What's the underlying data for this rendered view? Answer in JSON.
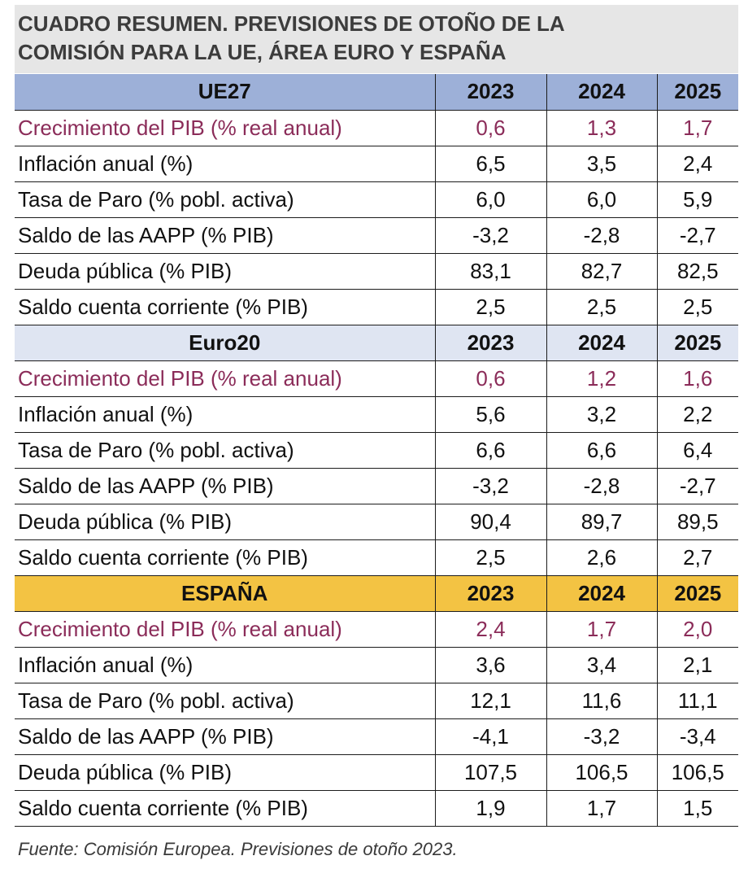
{
  "title": {
    "line1": "CUADRO RESUMEN. PREVISIONES DE OTOÑO DE LA",
    "line2": "COMISIÓN PARA LA UE, ÁREA EURO Y ESPAÑA"
  },
  "colors": {
    "ue_header": "#9db0d8",
    "euro_header": "#dfe5f2",
    "es_header": "#f3c343",
    "accent_text": "#8b2c59",
    "title_background": "#e6e6e6"
  },
  "sections": [
    {
      "name": "UE27",
      "years": [
        "2023",
        "2024",
        "2025"
      ],
      "rows": [
        {
          "label": "Crecimiento del PIB (% real anual)",
          "values": [
            "0,6",
            "1,3",
            "1,7"
          ]
        },
        {
          "label": "Inflación anual (%)",
          "values": [
            "6,5",
            "3,5",
            "2,4"
          ]
        },
        {
          "label": "Tasa de Paro (% pobl. activa)",
          "values": [
            "6,0",
            "6,0",
            "5,9"
          ]
        },
        {
          "label": "Saldo de las AAPP (% PIB)",
          "values": [
            "-3,2",
            "-2,8",
            "-2,7"
          ]
        },
        {
          "label": "Deuda pública (% PIB)",
          "values": [
            "83,1",
            "82,7",
            "82,5"
          ]
        },
        {
          "label": "Saldo cuenta corriente (% PIB)",
          "values": [
            "2,5",
            "2,5",
            "2,5"
          ]
        }
      ]
    },
    {
      "name": "Euro20",
      "years": [
        "2023",
        "2024",
        "2025"
      ],
      "rows": [
        {
          "label": "Crecimiento del PIB (% real anual)",
          "values": [
            "0,6",
            "1,2",
            "1,6"
          ]
        },
        {
          "label": "Inflación anual (%)",
          "values": [
            "5,6",
            "3,2",
            "2,2"
          ]
        },
        {
          "label": "Tasa de Paro (% pobl. activa)",
          "values": [
            "6,6",
            "6,6",
            "6,4"
          ]
        },
        {
          "label": "Saldo de las AAPP (% PIB)",
          "values": [
            "-3,2",
            "-2,8",
            "-2,7"
          ]
        },
        {
          "label": "Deuda pública (% PIB)",
          "values": [
            "90,4",
            "89,7",
            "89,5"
          ]
        },
        {
          "label": "Saldo cuenta corriente (% PIB)",
          "values": [
            "2,5",
            "2,6",
            "2,7"
          ]
        }
      ]
    },
    {
      "name": "ESPAÑA",
      "years": [
        "2023",
        "2024",
        "2025"
      ],
      "rows": [
        {
          "label": "Crecimiento del PIB (% real anual)",
          "values": [
            "2,4",
            "1,7",
            "2,0"
          ]
        },
        {
          "label": "Inflación anual (%)",
          "values": [
            "3,6",
            "3,4",
            "2,1"
          ]
        },
        {
          "label": "Tasa de Paro (% pobl. activa)",
          "values": [
            "12,1",
            "11,6",
            "11,1"
          ]
        },
        {
          "label": "Saldo de las AAPP (% PIB)",
          "values": [
            "-4,1",
            "-3,2",
            "-3,4"
          ]
        },
        {
          "label": "Deuda pública (% PIB)",
          "values": [
            "107,5",
            "106,5",
            "106,5"
          ]
        },
        {
          "label": "Saldo cuenta corriente (% PIB)",
          "values": [
            "1,9",
            "1,7",
            "1,5"
          ]
        }
      ]
    }
  ],
  "source": "Fuente: Comisión Europea. Previsiones de otoño 2023."
}
